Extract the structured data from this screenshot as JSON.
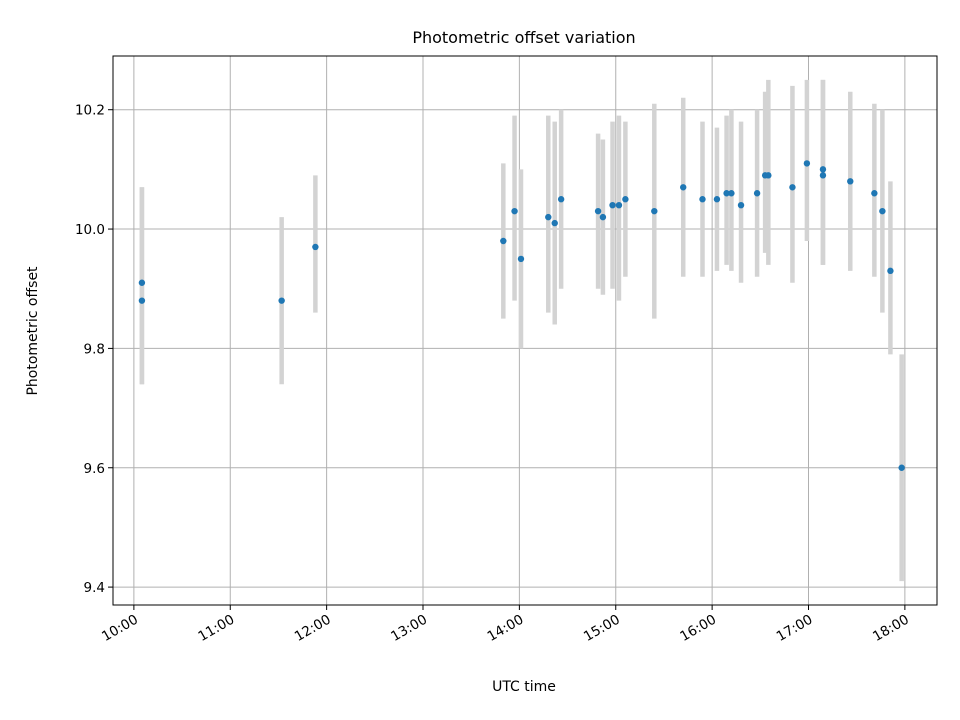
{
  "chart_data": {
    "type": "scatter",
    "title": "Photometric offset variation",
    "xlabel": "UTC time",
    "ylabel": "Photometric offset",
    "x_ticks": [
      "10:00",
      "11:00",
      "12:00",
      "13:00",
      "14:00",
      "15:00",
      "16:00",
      "17:00",
      "18:00"
    ],
    "y_ticks": [
      "9.4",
      "9.6",
      "9.8",
      "10.0",
      "10.2"
    ],
    "xlim": [
      "09:47",
      "18:20"
    ],
    "ylim": [
      9.37,
      10.29
    ],
    "grid": true,
    "marker_color": "#1f77b4",
    "errorbar_color": "#d3d3d3",
    "points": [
      {
        "x": "10:05",
        "y": 9.91,
        "yerr_low": 9.74,
        "yerr_high": 10.07
      },
      {
        "x": "10:05",
        "y": 9.88,
        "yerr_low": 9.74,
        "yerr_high": 10.07
      },
      {
        "x": "11:32",
        "y": 9.88,
        "yerr_low": 9.74,
        "yerr_high": 10.02
      },
      {
        "x": "11:53",
        "y": 9.97,
        "yerr_low": 9.86,
        "yerr_high": 10.09
      },
      {
        "x": "13:50",
        "y": 9.98,
        "yerr_low": 9.85,
        "yerr_high": 10.11
      },
      {
        "x": "13:57",
        "y": 10.03,
        "yerr_low": 9.88,
        "yerr_high": 10.19
      },
      {
        "x": "14:01",
        "y": 9.95,
        "yerr_low": 9.8,
        "yerr_high": 10.1
      },
      {
        "x": "14:18",
        "y": 10.02,
        "yerr_low": 9.86,
        "yerr_high": 10.19
      },
      {
        "x": "14:22",
        "y": 10.01,
        "yerr_low": 9.84,
        "yerr_high": 10.18
      },
      {
        "x": "14:26",
        "y": 10.05,
        "yerr_low": 9.9,
        "yerr_high": 10.2
      },
      {
        "x": "14:49",
        "y": 10.03,
        "yerr_low": 9.9,
        "yerr_high": 10.16
      },
      {
        "x": "14:52",
        "y": 10.02,
        "yerr_low": 9.89,
        "yerr_high": 10.15
      },
      {
        "x": "14:58",
        "y": 10.04,
        "yerr_low": 9.9,
        "yerr_high": 10.18
      },
      {
        "x": "15:02",
        "y": 10.04,
        "yerr_low": 9.88,
        "yerr_high": 10.19
      },
      {
        "x": "15:06",
        "y": 10.05,
        "yerr_low": 9.92,
        "yerr_high": 10.18
      },
      {
        "x": "15:24",
        "y": 10.03,
        "yerr_low": 9.85,
        "yerr_high": 10.21
      },
      {
        "x": "15:42",
        "y": 10.07,
        "yerr_low": 9.92,
        "yerr_high": 10.22
      },
      {
        "x": "15:54",
        "y": 10.05,
        "yerr_low": 9.92,
        "yerr_high": 10.18
      },
      {
        "x": "16:03",
        "y": 10.05,
        "yerr_low": 9.93,
        "yerr_high": 10.17
      },
      {
        "x": "16:09",
        "y": 10.06,
        "yerr_low": 9.94,
        "yerr_high": 10.19
      },
      {
        "x": "16:12",
        "y": 10.06,
        "yerr_low": 9.93,
        "yerr_high": 10.2
      },
      {
        "x": "16:18",
        "y": 10.04,
        "yerr_low": 9.91,
        "yerr_high": 10.18
      },
      {
        "x": "16:28",
        "y": 10.06,
        "yerr_low": 9.92,
        "yerr_high": 10.2
      },
      {
        "x": "16:33",
        "y": 10.09,
        "yerr_low": 9.96,
        "yerr_high": 10.23
      },
      {
        "x": "16:35",
        "y": 10.09,
        "yerr_low": 9.94,
        "yerr_high": 10.25
      },
      {
        "x": "16:50",
        "y": 10.07,
        "yerr_low": 9.91,
        "yerr_high": 10.24
      },
      {
        "x": "16:59",
        "y": 10.11,
        "yerr_low": 9.98,
        "yerr_high": 10.25
      },
      {
        "x": "17:09",
        "y": 10.1,
        "yerr_low": 9.94,
        "yerr_high": 10.25
      },
      {
        "x": "17:09",
        "y": 10.09,
        "yerr_low": 9.94,
        "yerr_high": 10.25
      },
      {
        "x": "17:26",
        "y": 10.08,
        "yerr_low": 9.93,
        "yerr_high": 10.23
      },
      {
        "x": "17:41",
        "y": 10.06,
        "yerr_low": 9.92,
        "yerr_high": 10.21
      },
      {
        "x": "17:46",
        "y": 10.03,
        "yerr_low": 9.86,
        "yerr_high": 10.2
      },
      {
        "x": "17:51",
        "y": 9.93,
        "yerr_low": 9.79,
        "yerr_high": 10.08
      },
      {
        "x": "17:58",
        "y": 9.6,
        "yerr_low": 9.41,
        "yerr_high": 9.79
      }
    ]
  }
}
